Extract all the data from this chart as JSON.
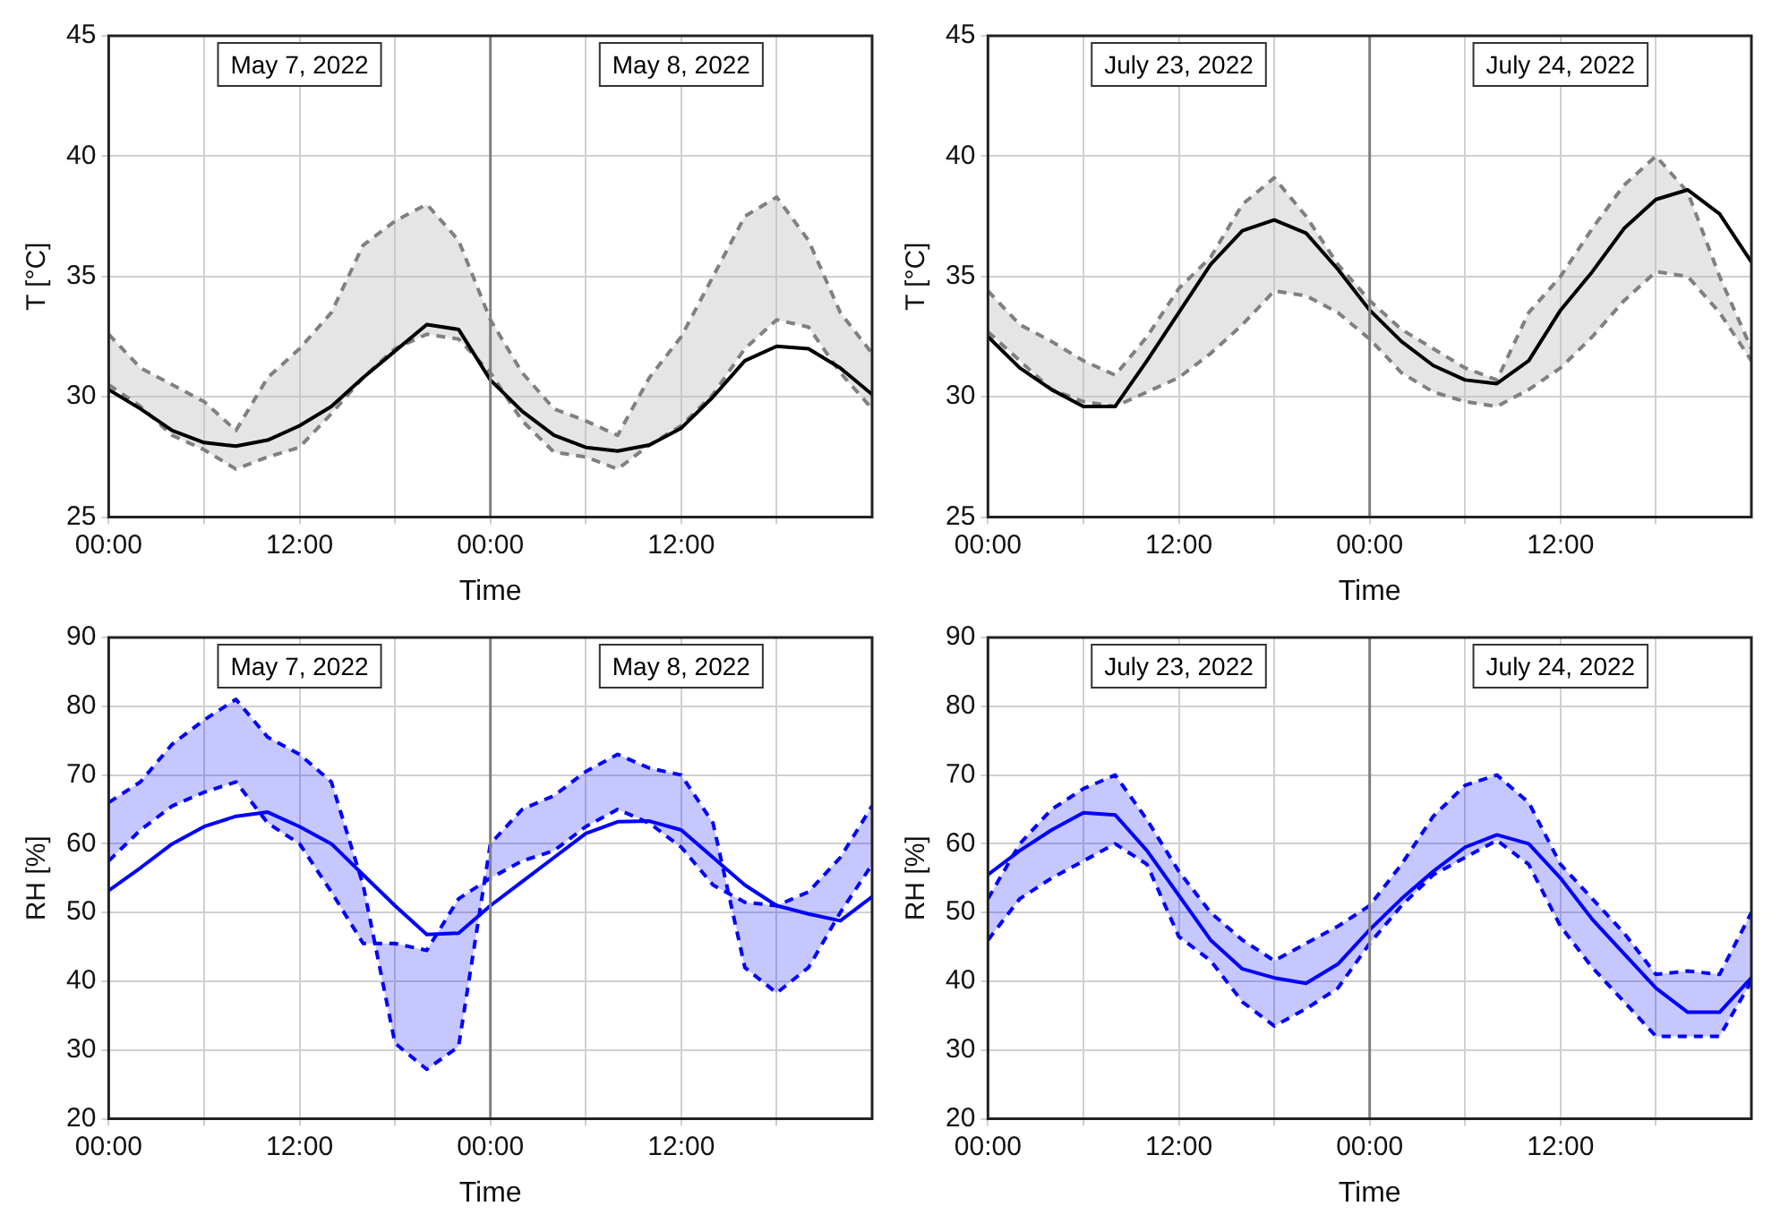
{
  "chart_data": [
    {
      "type": "line",
      "xlabel": "Time",
      "ylabel": "T [°C]",
      "xlim": [
        "2022-05-07T00:00",
        "2022-05-09T00:00"
      ],
      "ylim": [
        25,
        45
      ],
      "yticks": [
        25,
        30,
        35,
        40,
        45
      ],
      "grid": true,
      "xticks": [
        {
          "value": "2022-05-07T00:00",
          "label": "00:00"
        },
        {
          "value": "2022-05-07T06:00",
          "label": null
        },
        {
          "value": "2022-05-07T12:00",
          "label": "12:00"
        },
        {
          "value": "2022-05-07T18:00",
          "label": null
        },
        {
          "value": "2022-05-08T00:00",
          "label": "00:00"
        },
        {
          "value": "2022-05-08T06:00",
          "label": null
        },
        {
          "value": "2022-05-08T12:00",
          "label": "12:00"
        },
        {
          "value": "2022-05-08T18:00",
          "label": null
        }
      ],
      "annotations": [
        "May 7, 2022",
        "May 8, 2022"
      ],
      "ref_lines": [
        {
          "axis": "x",
          "value": "2022-05-08T00:00",
          "color": "#808080"
        }
      ],
      "x": [
        "2022-05-07T00:00",
        "2022-05-07T02:00",
        "2022-05-07T04:00",
        "2022-05-07T06:00",
        "2022-05-07T08:00",
        "2022-05-07T10:00",
        "2022-05-07T12:00",
        "2022-05-07T14:00",
        "2022-05-07T16:00",
        "2022-05-07T18:00",
        "2022-05-07T20:00",
        "2022-05-07T22:00",
        "2022-05-08T00:00",
        "2022-05-08T02:00",
        "2022-05-08T04:00",
        "2022-05-08T06:00",
        "2022-05-08T08:00",
        "2022-05-08T10:00",
        "2022-05-08T12:00",
        "2022-05-08T14:00",
        "2022-05-08T16:00",
        "2022-05-08T18:00",
        "2022-05-08T20:00",
        "2022-05-08T22:00",
        "2022-05-09T00:00"
      ],
      "series": [
        {
          "color": "#000000",
          "line_style": "solid",
          "values": [
            30.3,
            29.5,
            28.6,
            28.1,
            27.95,
            28.2,
            28.8,
            29.6,
            30.8,
            31.9,
            33.0,
            32.8,
            30.7,
            29.4,
            28.4,
            27.9,
            27.75,
            28.0,
            28.7,
            30.0,
            31.5,
            32.1,
            32.0,
            31.2,
            30.1
          ],
          "upper": [
            32.6,
            31.2,
            30.5,
            29.8,
            28.6,
            30.8,
            32.0,
            33.5,
            36.3,
            37.3,
            38.0,
            36.5,
            33.2,
            31.0,
            29.5,
            29.0,
            28.4,
            30.8,
            32.5,
            35.0,
            37.5,
            38.3,
            36.5,
            33.5,
            31.8
          ],
          "lower": [
            30.5,
            29.6,
            28.4,
            27.8,
            27.0,
            27.5,
            27.9,
            29.3,
            30.8,
            32.0,
            32.6,
            32.4,
            31.0,
            29.0,
            27.7,
            27.5,
            27.0,
            28.0,
            28.8,
            30.1,
            32.0,
            33.2,
            32.9,
            31.0,
            29.5
          ]
        },
        {
          "color": "#808080",
          "line_style": "dashed",
          "values": [
            32.6,
            31.2,
            30.5,
            29.8,
            28.6,
            30.8,
            32.0,
            33.5,
            36.3,
            37.3,
            38.0,
            36.5,
            33.2,
            31.0,
            29.5,
            29.0,
            28.4,
            30.8,
            32.5,
            35.0,
            37.5,
            38.3,
            36.5,
            33.5,
            31.8
          ]
        },
        {
          "color": "#808080",
          "line_style": "dashed",
          "values": [
            30.5,
            29.6,
            28.4,
            27.8,
            27.0,
            27.5,
            27.9,
            29.3,
            30.8,
            32.0,
            32.6,
            32.4,
            31.0,
            29.0,
            27.7,
            27.5,
            27.0,
            28.0,
            28.8,
            30.1,
            32.0,
            33.2,
            32.9,
            31.0,
            29.5
          ]
        }
      ]
    },
    {
      "type": "line",
      "xlabel": "Time",
      "ylabel": "T [°C]",
      "xlim": [
        "2022-07-23T00:00",
        "2022-07-25T00:00"
      ],
      "ylim": [
        25,
        45
      ],
      "yticks": [
        25,
        30,
        35,
        40,
        45
      ],
      "grid": true,
      "xticks": [
        {
          "value": "2022-07-23T00:00",
          "label": "00:00"
        },
        {
          "value": "2022-07-23T06:00",
          "label": null
        },
        {
          "value": "2022-07-23T12:00",
          "label": "12:00"
        },
        {
          "value": "2022-07-23T18:00",
          "label": null
        },
        {
          "value": "2022-07-24T00:00",
          "label": "00:00"
        },
        {
          "value": "2022-07-24T06:00",
          "label": null
        },
        {
          "value": "2022-07-24T12:00",
          "label": "12:00"
        },
        {
          "value": "2022-07-24T18:00",
          "label": null
        }
      ],
      "annotations": [
        "July 23, 2022",
        "July 24, 2022"
      ],
      "ref_lines": [
        {
          "axis": "x",
          "value": "2022-07-24T00:00",
          "color": "#808080"
        }
      ],
      "x": [
        "2022-07-23T00:00",
        "2022-07-23T02:00",
        "2022-07-23T04:00",
        "2022-07-23T06:00",
        "2022-07-23T08:00",
        "2022-07-23T10:00",
        "2022-07-23T12:00",
        "2022-07-23T14:00",
        "2022-07-23T16:00",
        "2022-07-23T18:00",
        "2022-07-23T20:00",
        "2022-07-23T22:00",
        "2022-07-24T00:00",
        "2022-07-24T02:00",
        "2022-07-24T04:00",
        "2022-07-24T06:00",
        "2022-07-24T08:00",
        "2022-07-24T10:00",
        "2022-07-24T12:00",
        "2022-07-24T14:00",
        "2022-07-24T16:00",
        "2022-07-24T18:00",
        "2022-07-24T20:00",
        "2022-07-24T22:00",
        "2022-07-25T00:00"
      ],
      "series": [
        {
          "color": "#000000",
          "line_style": "solid",
          "values": [
            32.5,
            31.2,
            30.3,
            29.6,
            29.6,
            31.5,
            33.5,
            35.5,
            36.9,
            37.35,
            36.8,
            35.3,
            33.6,
            32.3,
            31.3,
            30.7,
            30.55,
            31.5,
            33.6,
            35.2,
            37.0,
            38.2,
            38.6,
            37.6,
            35.6
          ],
          "upper": [
            34.4,
            33.0,
            32.3,
            31.5,
            30.9,
            32.5,
            34.5,
            35.8,
            38.0,
            39.1,
            37.5,
            35.5,
            34.0,
            32.8,
            32.0,
            31.2,
            30.7,
            33.5,
            35.0,
            37.0,
            38.8,
            40.0,
            38.5,
            35.0,
            32.0
          ],
          "lower": [
            32.7,
            31.5,
            30.3,
            29.8,
            29.6,
            30.2,
            30.8,
            31.8,
            33.0,
            34.4,
            34.2,
            33.5,
            32.4,
            31.0,
            30.2,
            29.8,
            29.6,
            30.3,
            31.2,
            32.5,
            34.0,
            35.2,
            35.0,
            33.5,
            31.5
          ]
        },
        {
          "color": "#808080",
          "line_style": "dashed",
          "values": [
            34.4,
            33.0,
            32.3,
            31.5,
            30.9,
            32.5,
            34.5,
            35.8,
            38.0,
            39.1,
            37.5,
            35.5,
            34.0,
            32.8,
            32.0,
            31.2,
            30.7,
            33.5,
            35.0,
            37.0,
            38.8,
            40.0,
            38.5,
            35.0,
            32.0
          ]
        },
        {
          "color": "#808080",
          "line_style": "dashed",
          "values": [
            32.7,
            31.5,
            30.3,
            29.8,
            29.6,
            30.2,
            30.8,
            31.8,
            33.0,
            34.4,
            34.2,
            33.5,
            32.4,
            31.0,
            30.2,
            29.8,
            29.6,
            30.3,
            31.2,
            32.5,
            34.0,
            35.2,
            35.0,
            33.5,
            31.5
          ]
        }
      ]
    },
    {
      "type": "line",
      "xlabel": "Time",
      "ylabel": "RH [%]",
      "xlim": [
        "2022-05-07T00:00",
        "2022-05-09T00:00"
      ],
      "ylim": [
        20,
        90
      ],
      "yticks": [
        20,
        30,
        40,
        50,
        60,
        70,
        80,
        90
      ],
      "grid": true,
      "xticks": [
        {
          "value": "2022-05-07T00:00",
          "label": "00:00"
        },
        {
          "value": "2022-05-07T06:00",
          "label": null
        },
        {
          "value": "2022-05-07T12:00",
          "label": "12:00"
        },
        {
          "value": "2022-05-07T18:00",
          "label": null
        },
        {
          "value": "2022-05-08T00:00",
          "label": "00:00"
        },
        {
          "value": "2022-05-08T06:00",
          "label": null
        },
        {
          "value": "2022-05-08T12:00",
          "label": "12:00"
        },
        {
          "value": "2022-05-08T18:00",
          "label": null
        }
      ],
      "annotations": [
        "May 7, 2022",
        "May 8, 2022"
      ],
      "ref_lines": [
        {
          "axis": "x",
          "value": "2022-05-08T00:00",
          "color": "#808080"
        }
      ],
      "x": [
        "2022-05-07T00:00",
        "2022-05-07T02:00",
        "2022-05-07T04:00",
        "2022-05-07T06:00",
        "2022-05-07T08:00",
        "2022-05-07T10:00",
        "2022-05-07T12:00",
        "2022-05-07T14:00",
        "2022-05-07T16:00",
        "2022-05-07T18:00",
        "2022-05-07T20:00",
        "2022-05-07T22:00",
        "2022-05-08T00:00",
        "2022-05-08T02:00",
        "2022-05-08T04:00",
        "2022-05-08T06:00",
        "2022-05-08T08:00",
        "2022-05-08T10:00",
        "2022-05-08T12:00",
        "2022-05-08T14:00",
        "2022-05-08T16:00",
        "2022-05-08T18:00",
        "2022-05-08T20:00",
        "2022-05-08T22:00",
        "2022-05-09T00:00"
      ],
      "series": [
        {
          "color": "#0000ff",
          "line_style": "solid",
          "values": [
            53.2,
            56.5,
            60.0,
            62.5,
            64.0,
            64.6,
            62.5,
            60.0,
            55.5,
            51.0,
            46.8,
            47.0,
            51.0,
            54.5,
            58.0,
            61.5,
            63.2,
            63.3,
            62.0,
            58.0,
            54.0,
            51.0,
            49.8,
            48.8,
            52.3
          ],
          "upper": [
            66,
            69,
            74.5,
            78,
            81,
            75.5,
            73,
            69,
            54,
            31,
            27.2,
            30.5,
            60,
            65,
            67,
            70.5,
            73,
            71,
            70,
            63,
            42,
            38.3,
            42,
            50,
            57
          ],
          "lower": [
            57.5,
            62,
            65.5,
            67.5,
            69,
            63,
            60,
            53,
            45.5,
            45.5,
            44.5,
            52,
            55,
            57.5,
            59,
            62.5,
            65,
            63,
            59.5,
            54,
            51.5,
            51,
            53,
            58,
            65.5
          ]
        },
        {
          "color": "#0000ff",
          "line_style": "dashed",
          "values": [
            66,
            69,
            74.5,
            78,
            81,
            75.5,
            73,
            69,
            54,
            31,
            27.2,
            30.5,
            60,
            65,
            67,
            70.5,
            73,
            71,
            70,
            63,
            42,
            38.3,
            42,
            50,
            57
          ]
        },
        {
          "color": "#0000ff",
          "line_style": "dashed",
          "values": [
            57.5,
            62,
            65.5,
            67.5,
            69,
            63,
            60,
            53,
            45.5,
            45.5,
            44.5,
            52,
            55,
            57.5,
            59,
            62.5,
            65,
            63,
            59.5,
            54,
            51.5,
            51,
            53,
            58,
            65.5
          ]
        }
      ]
    },
    {
      "type": "line",
      "xlabel": "Time",
      "ylabel": "RH [%]",
      "xlim": [
        "2022-07-23T00:00",
        "2022-07-25T00:00"
      ],
      "ylim": [
        20,
        90
      ],
      "yticks": [
        20,
        30,
        40,
        50,
        60,
        70,
        80,
        90
      ],
      "grid": true,
      "xticks": [
        {
          "value": "2022-07-23T00:00",
          "label": "00:00"
        },
        {
          "value": "2022-07-23T06:00",
          "label": null
        },
        {
          "value": "2022-07-23T12:00",
          "label": "12:00"
        },
        {
          "value": "2022-07-23T18:00",
          "label": null
        },
        {
          "value": "2022-07-24T00:00",
          "label": "00:00"
        },
        {
          "value": "2022-07-24T06:00",
          "label": null
        },
        {
          "value": "2022-07-24T12:00",
          "label": "12:00"
        },
        {
          "value": "2022-07-24T18:00",
          "label": null
        }
      ],
      "annotations": [
        "July 23, 2022",
        "July 24, 2022"
      ],
      "ref_lines": [
        {
          "axis": "x",
          "value": "2022-07-24T00:00",
          "color": "#808080"
        }
      ],
      "x": [
        "2022-07-23T00:00",
        "2022-07-23T02:00",
        "2022-07-23T04:00",
        "2022-07-23T06:00",
        "2022-07-23T08:00",
        "2022-07-23T10:00",
        "2022-07-23T12:00",
        "2022-07-23T14:00",
        "2022-07-23T16:00",
        "2022-07-23T18:00",
        "2022-07-23T20:00",
        "2022-07-23T22:00",
        "2022-07-24T00:00",
        "2022-07-24T02:00",
        "2022-07-24T04:00",
        "2022-07-24T06:00",
        "2022-07-24T08:00",
        "2022-07-24T10:00",
        "2022-07-24T12:00",
        "2022-07-24T14:00",
        "2022-07-24T16:00",
        "2022-07-24T18:00",
        "2022-07-24T20:00",
        "2022-07-24T22:00",
        "2022-07-25T00:00"
      ],
      "series": [
        {
          "color": "#0000ff",
          "line_style": "solid",
          "values": [
            55.5,
            59,
            62,
            64.5,
            64.2,
            59,
            52.5,
            46,
            41.8,
            40.5,
            39.7,
            42.5,
            47.5,
            52,
            56,
            59.5,
            61.3,
            60,
            55,
            49,
            44,
            39,
            35.5,
            35.5,
            40.5
          ],
          "upper": [
            52,
            60,
            65,
            68,
            70,
            63.5,
            56,
            50,
            46,
            43,
            45.5,
            48,
            51,
            57,
            64,
            68.5,
            70,
            66,
            57,
            52,
            47,
            41,
            41.5,
            41,
            50
          ],
          "lower": [
            46,
            52,
            55,
            57.5,
            60,
            57,
            46.5,
            43,
            37,
            33.5,
            36,
            39,
            45.5,
            51,
            55.5,
            58,
            60.5,
            57,
            48,
            42,
            37,
            32,
            32,
            32,
            40
          ]
        },
        {
          "color": "#0000ff",
          "line_style": "dashed",
          "values": [
            52,
            60,
            65,
            68,
            70,
            63.5,
            56,
            50,
            46,
            43,
            45.5,
            48,
            51,
            57,
            64,
            68.5,
            70,
            66,
            57,
            52,
            47,
            41,
            41.5,
            41,
            50
          ]
        },
        {
          "color": "#0000ff",
          "line_style": "dashed",
          "values": [
            46,
            52,
            55,
            57.5,
            60,
            57,
            46.5,
            43,
            37,
            33.5,
            36,
            39,
            45.5,
            51,
            55.5,
            58,
            60.5,
            57,
            48,
            42,
            37,
            32,
            32,
            32,
            40
          ]
        }
      ]
    }
  ]
}
